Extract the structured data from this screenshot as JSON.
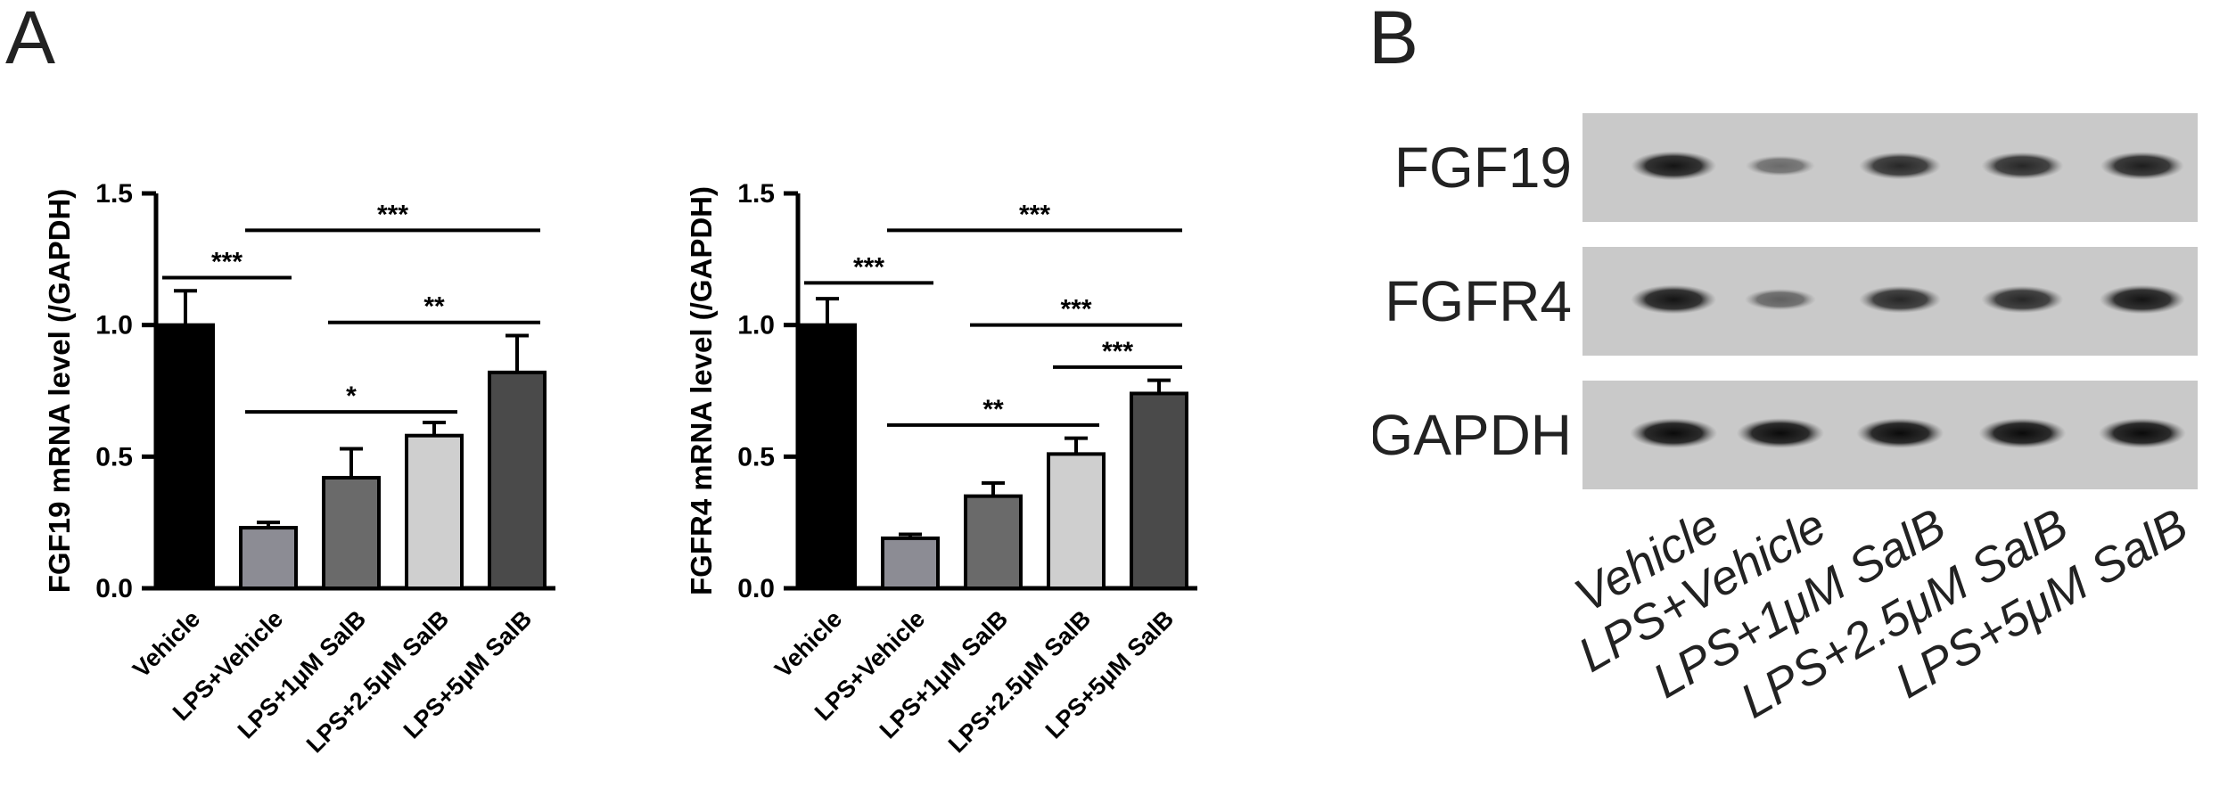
{
  "panels": {
    "a": "A",
    "b": "B"
  },
  "chart_data": [
    {
      "type": "bar",
      "ylabel": "FGF19 mRNA level (/GAPDH)",
      "xlabel": "",
      "categories": [
        "Vehicle",
        "LPS+Vehicle",
        "LPS+1μM SalB",
        "LPS+2.5μM SalB",
        "LPS+5μM SalB"
      ],
      "values": [
        1.0,
        0.23,
        0.42,
        0.58,
        0.82
      ],
      "errors": [
        0.13,
        0.02,
        0.11,
        0.05,
        0.14
      ],
      "bar_colors": [
        "#000000",
        "#8c8c94",
        "#6a6a6a",
        "#cfcfcf",
        "#4a4a4a"
      ],
      "ylim": [
        0,
        1.5
      ],
      "yticks": [
        "0.0",
        "0.5",
        "1.0",
        "1.5"
      ],
      "significance": [
        {
          "from": 0,
          "to": 1,
          "y": 1.18,
          "label": "***"
        },
        {
          "from": 1,
          "to": 4,
          "y": 1.36,
          "label": "***"
        },
        {
          "from": 2,
          "to": 4,
          "y": 1.01,
          "label": "**"
        },
        {
          "from": 1,
          "to": 3,
          "y": 0.67,
          "label": "*"
        }
      ]
    },
    {
      "type": "bar",
      "ylabel": "FGFR4 mRNA level (/GAPDH)",
      "xlabel": "",
      "categories": [
        "Vehicle",
        "LPS+Vehicle",
        "LPS+1μM SalB",
        "LPS+2.5μM SalB",
        "LPS+5μM SalB"
      ],
      "values": [
        1.0,
        0.19,
        0.35,
        0.51,
        0.74
      ],
      "errors": [
        0.1,
        0.015,
        0.05,
        0.06,
        0.05
      ],
      "bar_colors": [
        "#000000",
        "#8c8c94",
        "#6a6a6a",
        "#cfcfcf",
        "#4a4a4a"
      ],
      "ylim": [
        0,
        1.5
      ],
      "yticks": [
        "0.0",
        "0.5",
        "1.0",
        "1.5"
      ],
      "significance": [
        {
          "from": 0,
          "to": 1,
          "y": 1.16,
          "label": "***"
        },
        {
          "from": 1,
          "to": 4,
          "y": 1.36,
          "label": "***"
        },
        {
          "from": 2,
          "to": 4,
          "y": 1.0,
          "label": "***"
        },
        {
          "from": 3,
          "to": 4,
          "y": 0.84,
          "label": "***"
        },
        {
          "from": 1,
          "to": 3,
          "y": 0.62,
          "label": "**"
        }
      ]
    }
  ],
  "blot": {
    "rows": [
      {
        "label": "FGF19",
        "intensity": [
          0.95,
          0.5,
          0.85,
          0.85,
          0.9
        ]
      },
      {
        "label": "FGFR4",
        "intensity": [
          0.95,
          0.55,
          0.85,
          0.85,
          0.95
        ]
      },
      {
        "label": "GAPDH",
        "intensity": [
          1.0,
          1.0,
          1.0,
          1.0,
          1.0
        ]
      }
    ],
    "lanes": [
      "Vehicle",
      "LPS+Vehicle",
      "LPS+1μM SalB",
      "LPS+2.5μM SalB",
      "LPS+5μM SalB"
    ]
  }
}
